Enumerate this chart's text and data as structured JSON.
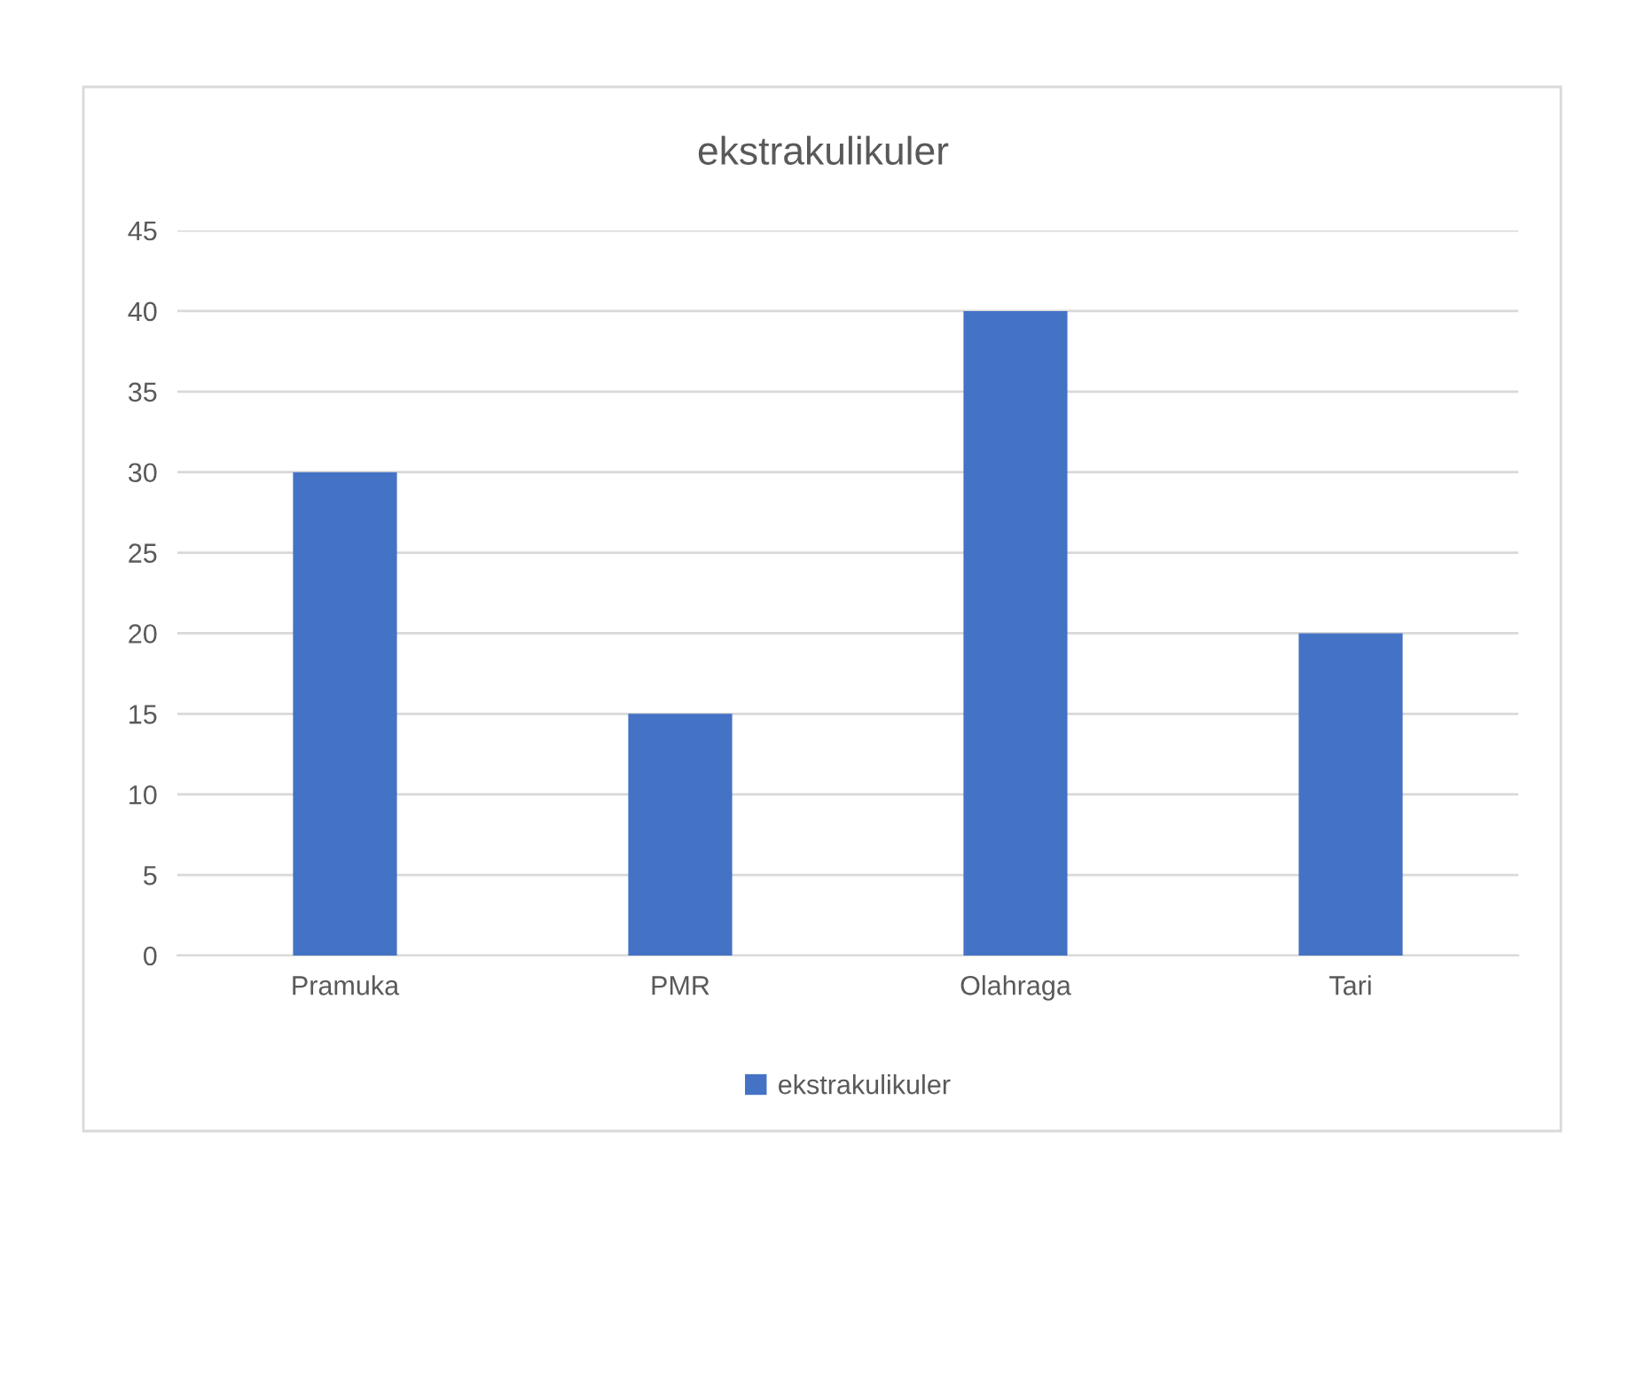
{
  "chart_data": {
    "type": "bar",
    "title": "ekstrakulikuler",
    "categories": [
      "Pramuka",
      "PMR",
      "Olahraga",
      "Tari"
    ],
    "series": [
      {
        "name": "ekstrakulikuler",
        "color": "#4472c4",
        "values": [
          30,
          15,
          40,
          20
        ]
      }
    ],
    "ylim": [
      0,
      45
    ],
    "yticks": [
      0,
      5,
      10,
      15,
      20,
      25,
      30,
      35,
      40,
      45
    ],
    "grid": "y",
    "legend": "bottom"
  }
}
